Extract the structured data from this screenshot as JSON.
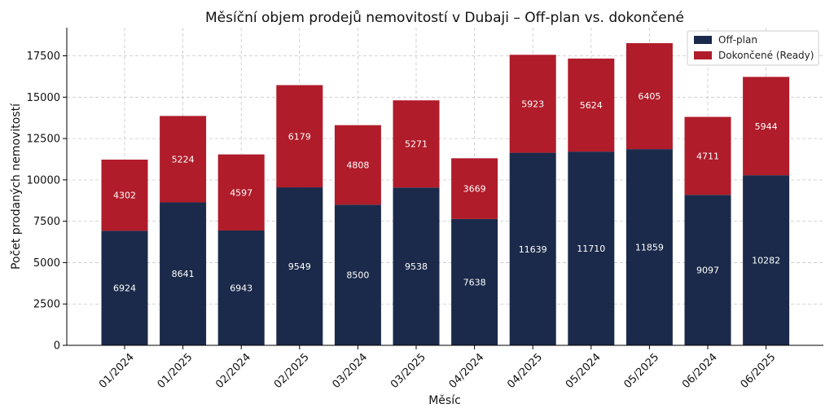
{
  "chart_data": {
    "type": "bar",
    "stacked": true,
    "title": "Měsíční objem prodejů nemovitostí v Dubaji – Off-plan vs. dokončené",
    "xlabel": "Měsíc",
    "ylabel": "Počet prodaných nemovitostí",
    "ylim": [
      0,
      19200
    ],
    "yticks": [
      0,
      2500,
      5000,
      7500,
      10000,
      12500,
      15000,
      17500
    ],
    "grid": true,
    "legend_position": "top-right",
    "categories": [
      "01/2024",
      "01/2025",
      "02/2024",
      "02/2025",
      "03/2024",
      "03/2025",
      "04/2024",
      "04/2025",
      "05/2024",
      "05/2025",
      "06/2024",
      "06/2025"
    ],
    "series": [
      {
        "name": "Off-plan",
        "color": "#1b2a4a",
        "values": [
          6924,
          8641,
          6943,
          9549,
          8500,
          9538,
          7638,
          11639,
          11710,
          11859,
          9097,
          10282
        ]
      },
      {
        "name": "Dokončené (Ready)",
        "color": "#b01c2a",
        "values": [
          4302,
          5224,
          4597,
          6179,
          4808,
          5271,
          3669,
          5923,
          5624,
          6405,
          4711,
          5944
        ]
      }
    ]
  }
}
